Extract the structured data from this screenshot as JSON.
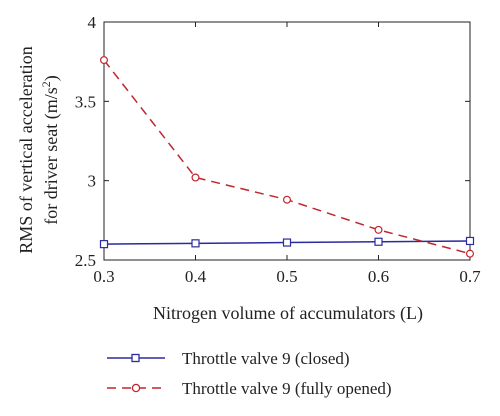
{
  "chart_data": {
    "type": "line",
    "title": "",
    "xlabel": "Nitrogen volume of accumulators (L)",
    "ylabel_lines": [
      "RMS of vertical acceleration",
      "for driver seat (m/s",
      "2",
      ")"
    ],
    "x": [
      0.3,
      0.4,
      0.5,
      0.6,
      0.7
    ],
    "xlim": [
      0.3,
      0.7
    ],
    "ylim": [
      2.5,
      4.0
    ],
    "xticks": [
      "0.3",
      "0.4",
      "0.5",
      "0.6",
      "0.7"
    ],
    "yticks": [
      "2.5",
      "3",
      "3.5",
      "4"
    ],
    "ytick_values": [
      2.5,
      3.0,
      3.5,
      4.0
    ],
    "grid": false,
    "legend_position": "bottom",
    "series": [
      {
        "name": "Throttle valve 9 (closed)",
        "values": [
          2.6,
          2.605,
          2.61,
          2.615,
          2.62
        ],
        "color": "#2b2b9e",
        "line_style": "solid",
        "marker": "square"
      },
      {
        "name": "Throttle valve 9 (fully opened)",
        "values": [
          3.76,
          3.02,
          2.88,
          2.69,
          2.54
        ],
        "color": "#c0262d",
        "line_style": "dashed",
        "marker": "circle"
      }
    ]
  }
}
